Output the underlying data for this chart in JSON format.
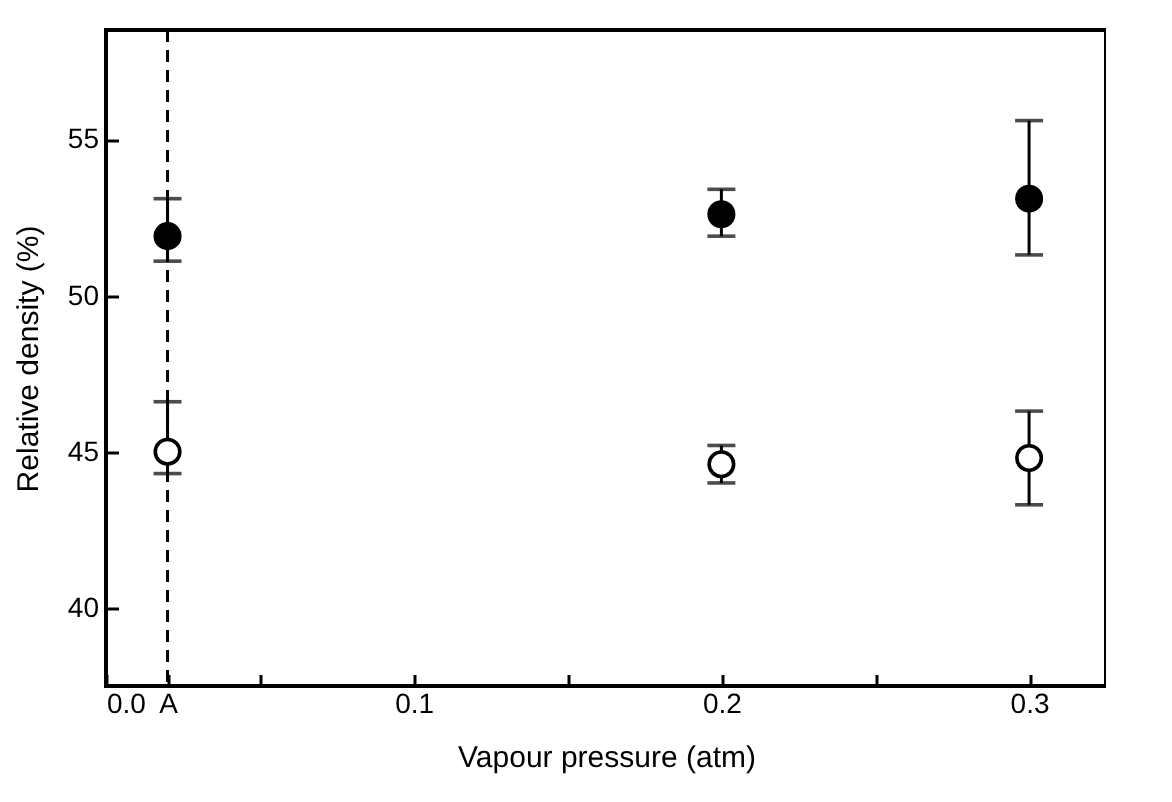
{
  "chart_data": {
    "type": "scatter",
    "xlabel": "Vapour pressure (atm)",
    "ylabel": "Relative density (%)",
    "x": [
      0.02,
      0.2,
      0.3
    ],
    "series": [
      {
        "color": "#000000",
        "values": [
          51.9,
          52.6,
          53.1
        ],
        "errors": [
          [
            51.1,
            53.1
          ],
          [
            51.9,
            53.4
          ],
          [
            51.3,
            55.6
          ]
        ]
      },
      {
        "color": "#ffffff",
        "values": [
          45.0,
          44.6,
          44.8
        ],
        "errors": [
          [
            44.3,
            46.6
          ],
          [
            44.0,
            45.2
          ],
          [
            43.3,
            46.3
          ]
        ]
      }
    ],
    "xlim": [
      0,
      0.325
    ],
    "xticks": [
      {
        "value": 0,
        "label": "0.0"
      },
      {
        "value": 0.02,
        "label": "A"
      },
      {
        "value": 0.05,
        "label": null
      },
      {
        "value": 0.1,
        "label": "0.1"
      },
      {
        "value": 0.15,
        "label": null
      },
      {
        "value": 0.2,
        "label": "0.2"
      },
      {
        "value": 0.25,
        "label": null
      },
      {
        "value": 0.3,
        "label": "0.3"
      }
    ],
    "ylim": [
      37.5,
      58.5
    ],
    "yticks": [
      40,
      45,
      50,
      55
    ],
    "ref_lines": [
      {
        "axis": "x",
        "value": 0.02,
        "color": "#000000",
        "line_style": "dashed"
      }
    ],
    "marker": "circle",
    "grid": false
  }
}
